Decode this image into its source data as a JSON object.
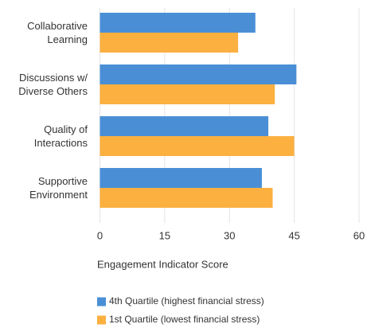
{
  "chart_data": {
    "type": "hbar",
    "categories": [
      "Collaborative Learning",
      "Discussions w/ Diverse Others",
      "Quality of Interactions",
      "Supportive Environment"
    ],
    "series": [
      {
        "name": "4th Quartile (highest financial stress)",
        "color": "#4a8fd6",
        "values": [
          36,
          45.5,
          39,
          37.5
        ]
      },
      {
        "name": "1st Quartile (lowest financial stress)",
        "color": "#fbb040",
        "values": [
          32,
          40.5,
          45,
          40
        ]
      }
    ],
    "x_label": "Engagement Indicator Score",
    "xlim": [
      0,
      60
    ],
    "xticks": [
      0,
      15,
      30,
      45,
      60
    ],
    "grid": true,
    "legend": "bottom"
  }
}
